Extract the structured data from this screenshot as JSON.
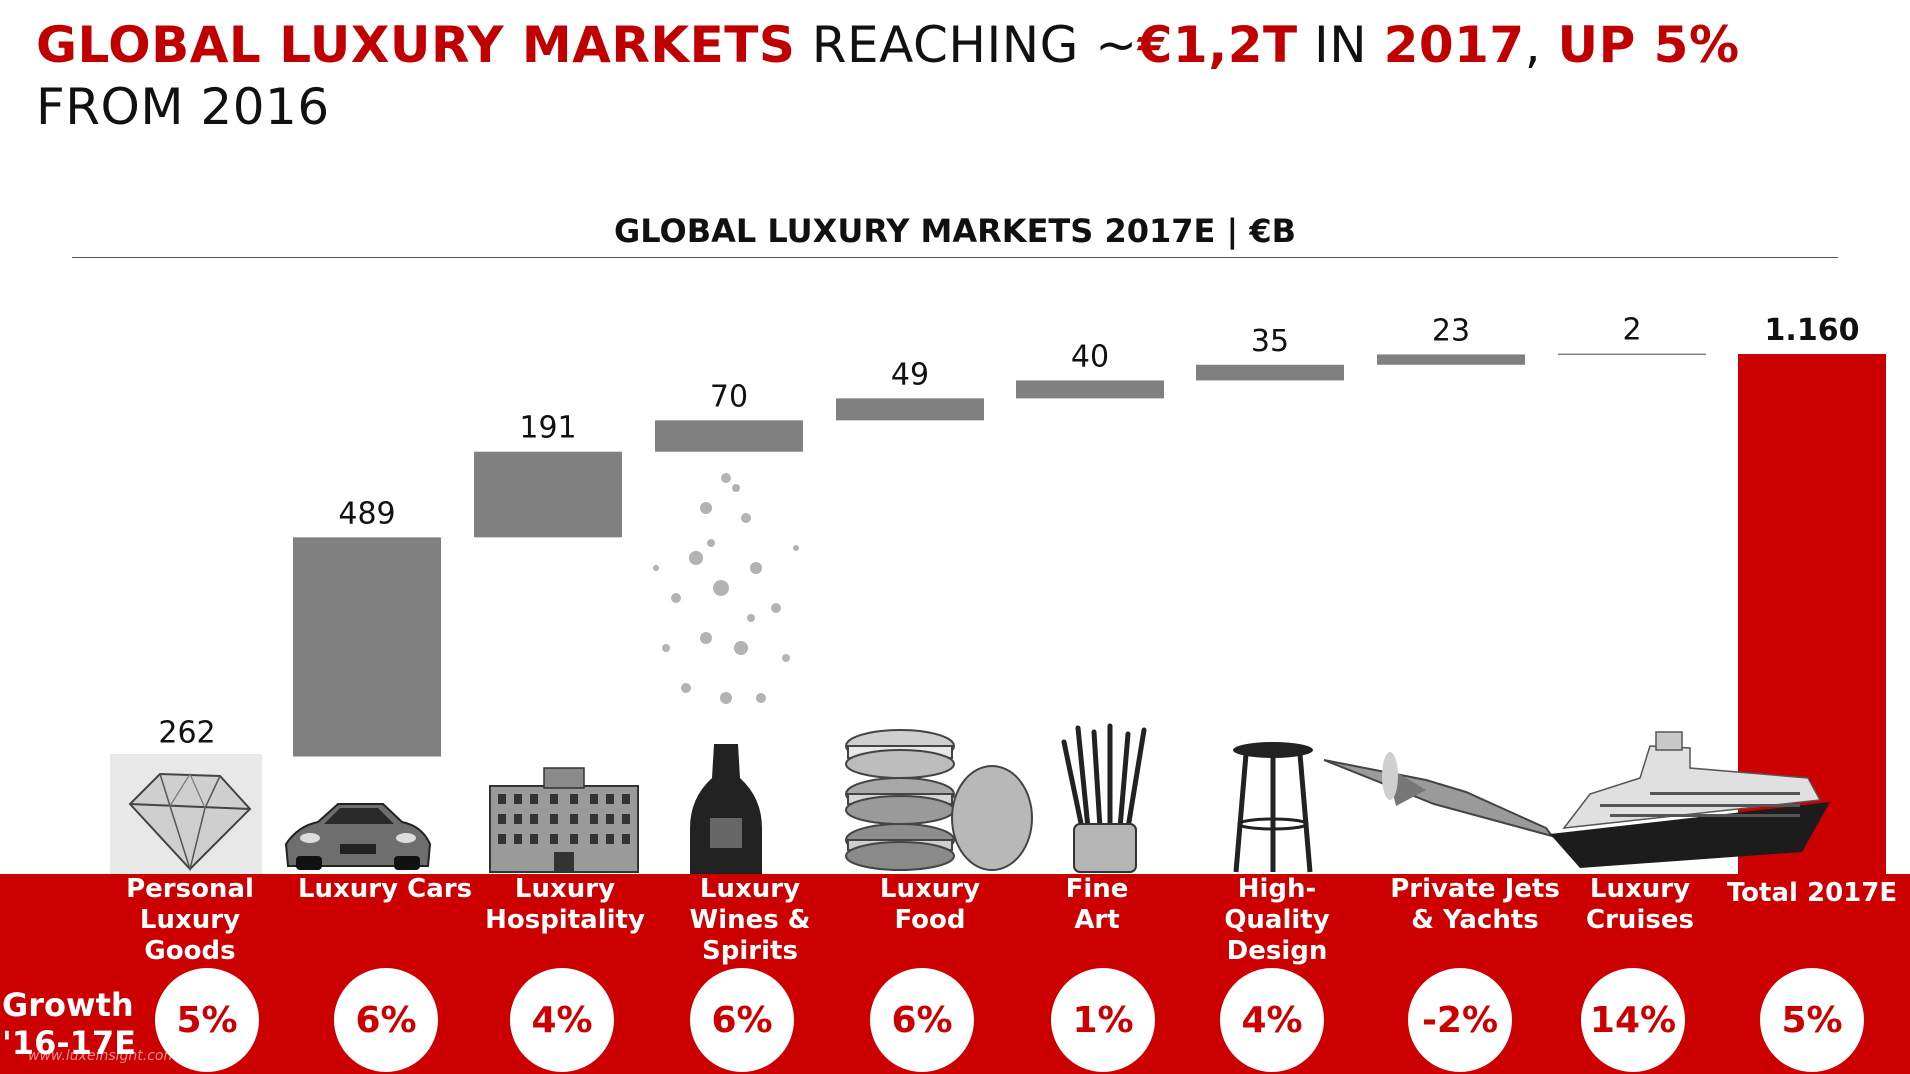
{
  "headline": {
    "parts": [
      {
        "text": "GLOBAL LUXURY MARKETS",
        "style": "red"
      },
      {
        "text": " REACHING ~",
        "style": "black"
      },
      {
        "text": "€1,2T",
        "style": "red"
      },
      {
        "text": " IN ",
        "style": "black"
      },
      {
        "text": "2017",
        "style": "red"
      },
      {
        "text": ", ",
        "style": "black"
      },
      {
        "text": "UP 5%",
        "style": "red"
      },
      {
        "text": " FROM 2016",
        "style": "black"
      }
    ]
  },
  "chart_data": {
    "type": "bar",
    "subtype": "waterfall",
    "title": "GLOBAL LUXURY MARKETS 2017E | €B",
    "categories": [
      "Personal Luxury Goods",
      "Luxury Cars",
      "Luxury Hospitality",
      "Luxury Wines & Spirits",
      "Luxury Food",
      "Fine Art",
      "High-Quality Design",
      "Private Jets & Yachts",
      "Luxury Cruises",
      "Total 2017E"
    ],
    "values": [
      262,
      489,
      191,
      70,
      49,
      40,
      35,
      23,
      2,
      1160
    ],
    "value_labels": [
      "262",
      "489",
      "191",
      "70",
      "49",
      "40",
      "35",
      "23",
      "2",
      "1.160"
    ],
    "growth_label": "Growth '16-17E",
    "growth": [
      "5%",
      "6%",
      "4%",
      "6%",
      "6%",
      "1%",
      "4%",
      "-2%",
      "14%",
      "5%"
    ],
    "colors": {
      "bar": "#808080",
      "total": "#cc0000",
      "band": "#cc0000",
      "accent": "#c00000"
    }
  },
  "category_labels": [
    "Personal Luxury Goods",
    "Luxury Cars",
    "Luxury Hospitality",
    "Luxury Wines & Spirits",
    "Luxury Food",
    "Fine Art",
    "High-Quality Design",
    "Private Jets & Yachts",
    "Luxury Cruises",
    "Total 2017E"
  ],
  "icons": [
    "diamond-icon",
    "car-icon",
    "hotel-icon",
    "champagne-icon",
    "macaron-icon",
    "paintbrush-icon",
    "stool-icon",
    "jet-icon",
    "cruise-ship-icon"
  ],
  "watermark": "www.luxeinsight.com"
}
